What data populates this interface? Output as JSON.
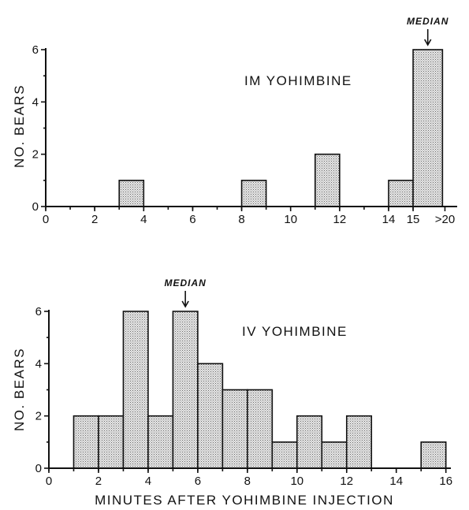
{
  "chart_data": [
    {
      "type": "bar",
      "title": "IM YOHIMBINE",
      "ylabel": "NO. BEARS",
      "xlabel": "",
      "yticks": [
        0,
        2,
        4,
        6
      ],
      "ylim": [
        0,
        6
      ],
      "xticks": [
        {
          "pos": 0,
          "label": "0"
        },
        {
          "pos": 2,
          "label": "2"
        },
        {
          "pos": 4,
          "label": "4"
        },
        {
          "pos": 6,
          "label": "6"
        },
        {
          "pos": 8,
          "label": "8"
        },
        {
          "pos": 10,
          "label": "10"
        },
        {
          "pos": 12,
          "label": "12"
        },
        {
          "pos": 14,
          "label": "14"
        },
        {
          "pos": 15,
          "label": "15"
        },
        {
          "pos": 16.3,
          "label": ">20"
        }
      ],
      "xlim": [
        0,
        16.8
      ],
      "bins": [
        {
          "x0": 3,
          "x1": 4,
          "value": 1
        },
        {
          "x0": 8,
          "x1": 9,
          "value": 1
        },
        {
          "x0": 11,
          "x1": 12,
          "value": 2
        },
        {
          "x0": 14,
          "x1": 15,
          "value": 1
        },
        {
          "x0": 15,
          "x1": 16.2,
          "value": 6
        }
      ],
      "median": {
        "label": "MEDIAN",
        "x": 15.6
      }
    },
    {
      "type": "bar",
      "title": "IV YOHIMBINE",
      "ylabel": "NO. BEARS",
      "xlabel": "MINUTES AFTER YOHIMBINE INJECTION",
      "yticks": [
        0,
        2,
        4,
        6
      ],
      "ylim": [
        0,
        6
      ],
      "xticks": [
        {
          "pos": 0,
          "label": "0"
        },
        {
          "pos": 2,
          "label": "2"
        },
        {
          "pos": 4,
          "label": "4"
        },
        {
          "pos": 6,
          "label": "6"
        },
        {
          "pos": 8,
          "label": "8"
        },
        {
          "pos": 10,
          "label": "10"
        },
        {
          "pos": 12,
          "label": "12"
        },
        {
          "pos": 14,
          "label": "14"
        },
        {
          "pos": 16,
          "label": "16"
        }
      ],
      "xlim": [
        0,
        16.2
      ],
      "bins": [
        {
          "x0": 1,
          "x1": 2,
          "value": 2
        },
        {
          "x0": 2,
          "x1": 3,
          "value": 2
        },
        {
          "x0": 3,
          "x1": 4,
          "value": 6
        },
        {
          "x0": 4,
          "x1": 5,
          "value": 2
        },
        {
          "x0": 5,
          "x1": 6,
          "value": 6
        },
        {
          "x0": 6,
          "x1": 7,
          "value": 4
        },
        {
          "x0": 7,
          "x1": 8,
          "value": 3
        },
        {
          "x0": 8,
          "x1": 9,
          "value": 3
        },
        {
          "x0": 9,
          "x1": 10,
          "value": 1
        },
        {
          "x0": 10,
          "x1": 11,
          "value": 2
        },
        {
          "x0": 11,
          "x1": 12,
          "value": 1
        },
        {
          "x0": 12,
          "x1": 13,
          "value": 2
        },
        {
          "x0": 15,
          "x1": 16,
          "value": 1
        }
      ],
      "median": {
        "label": "MEDIAN",
        "x": 5.5
      }
    }
  ]
}
